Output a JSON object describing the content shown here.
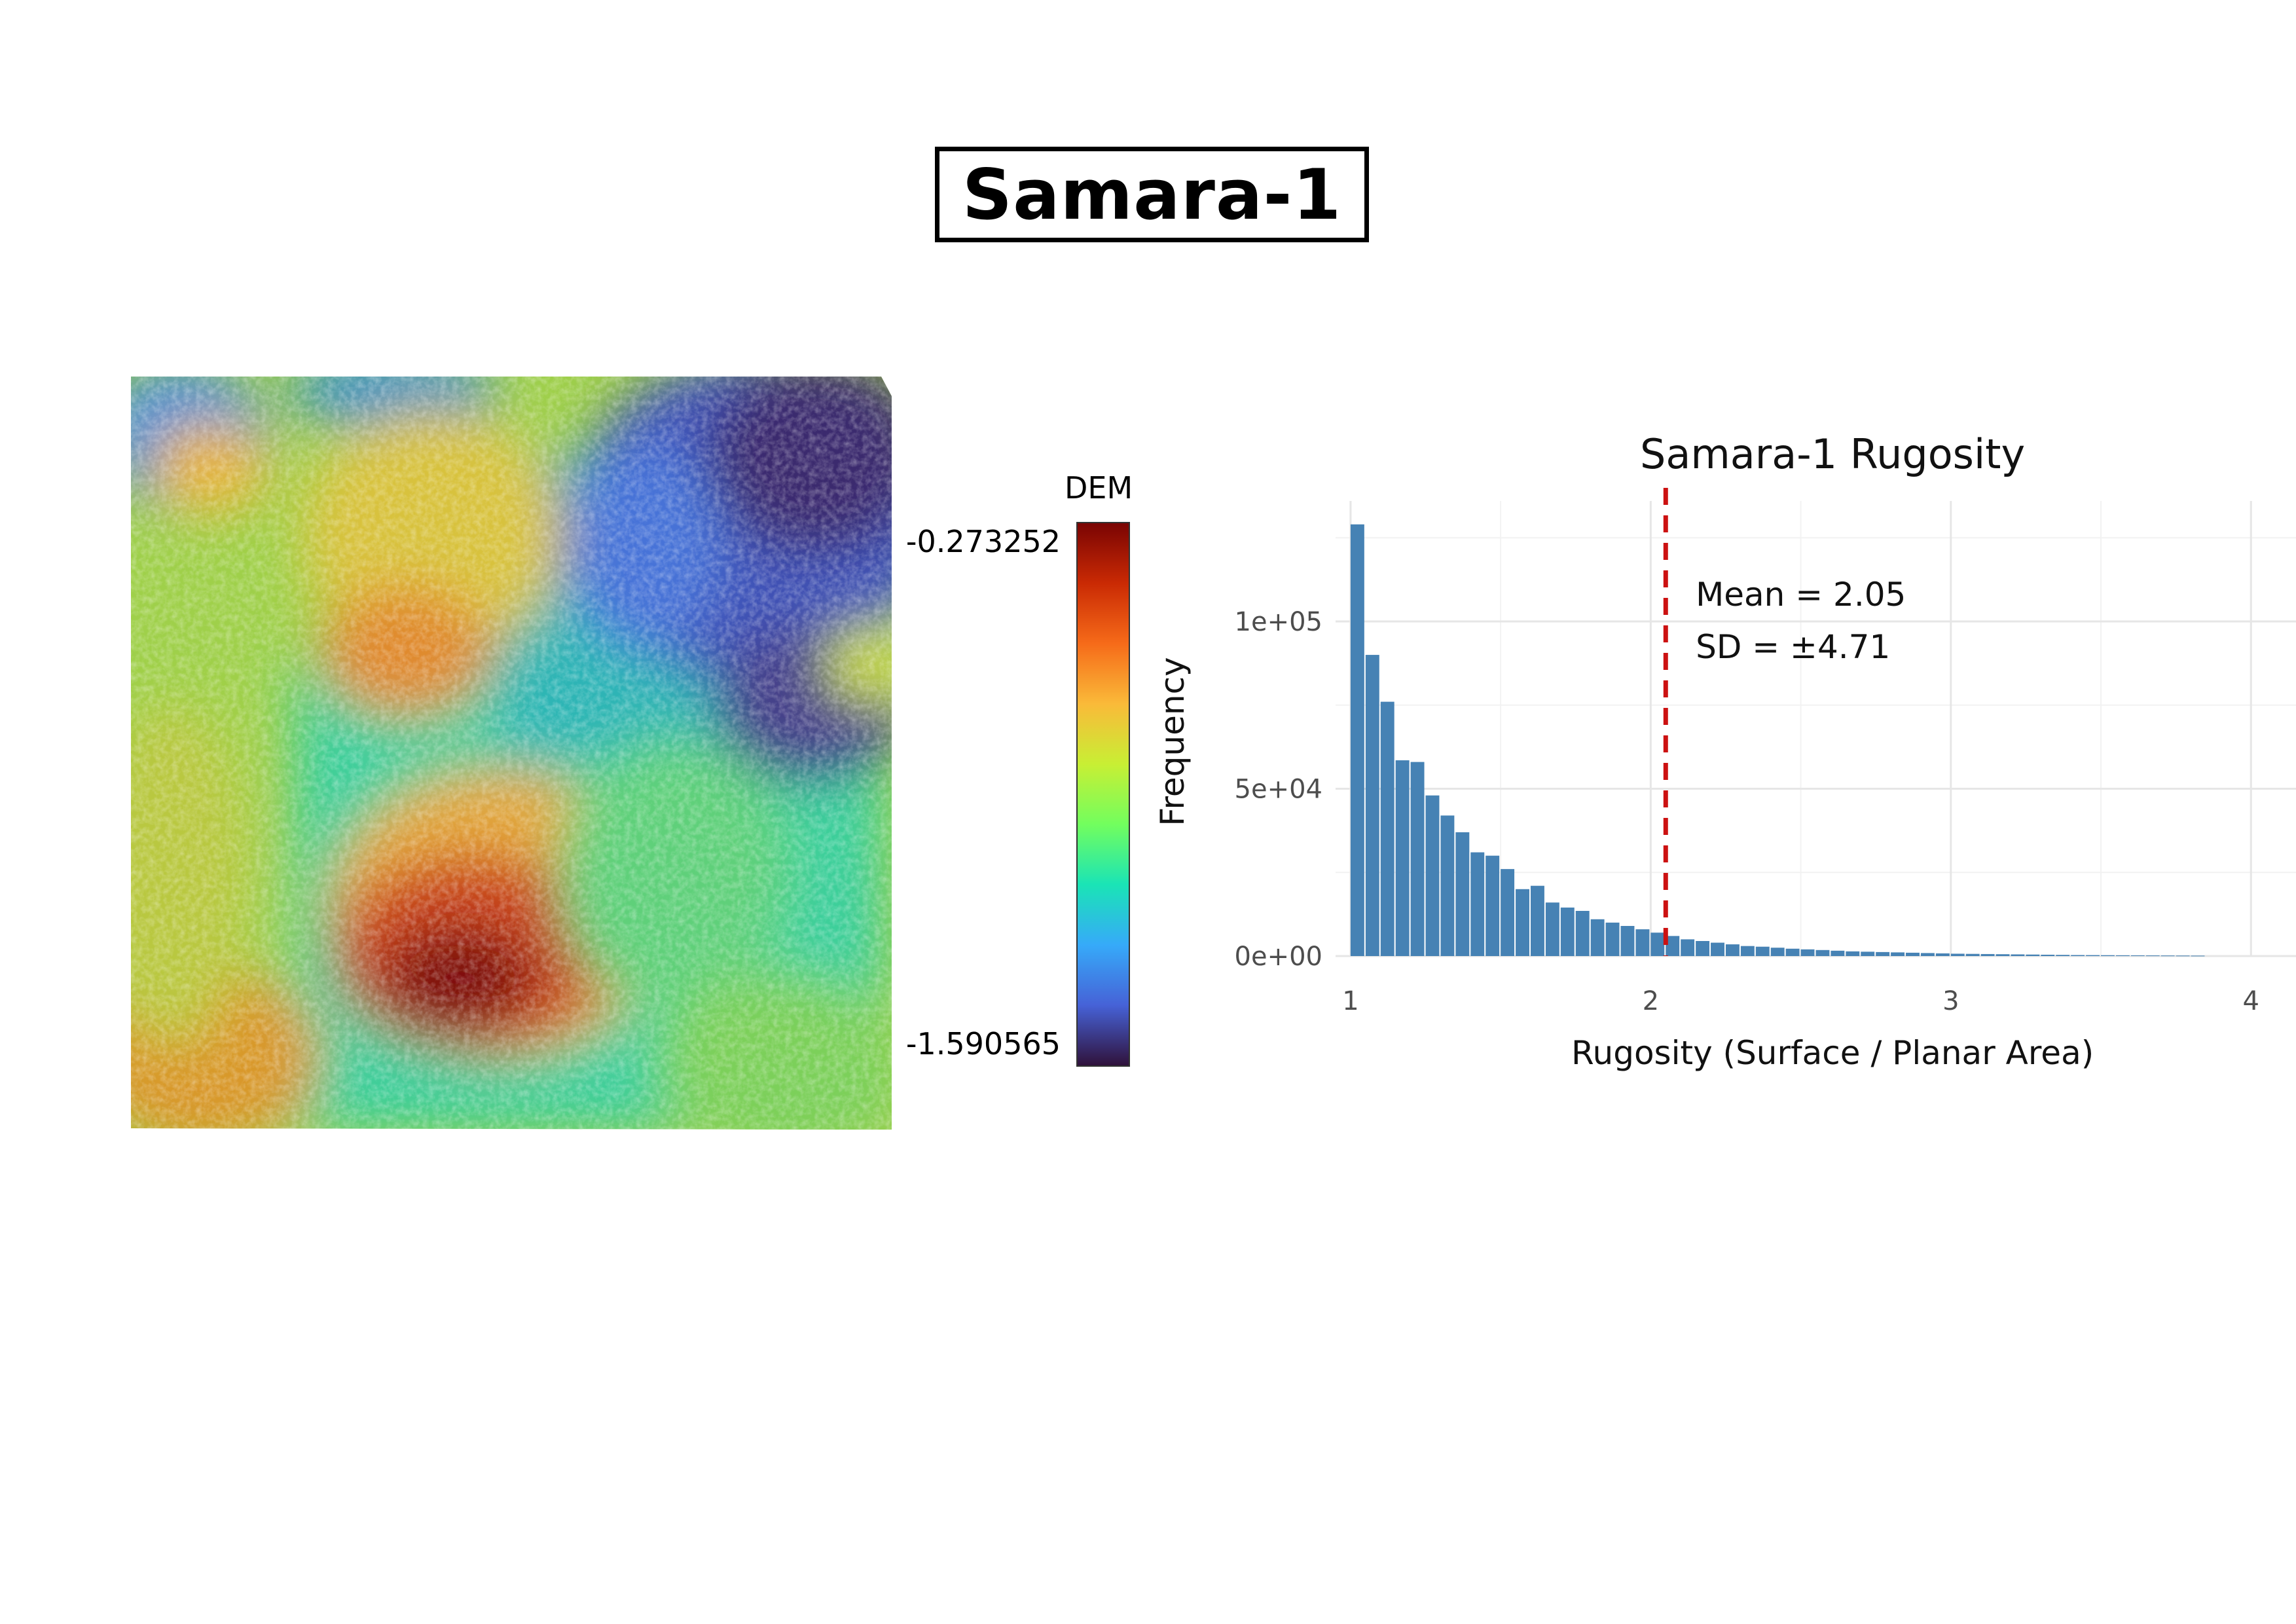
{
  "page": {
    "title": "Samara-1"
  },
  "dem_panel": {
    "legend_title": "DEM",
    "legend_max": "-0.273252",
    "legend_min": "-1.590565",
    "colormap": [
      "#30123b",
      "#4662d7",
      "#36aaf9",
      "#1ae4b6",
      "#72fe5e",
      "#c8ef34",
      "#faba39",
      "#f66b19",
      "#ca2a04",
      "#7a0403"
    ]
  },
  "chart_data": {
    "type": "bar",
    "title": "Samara-1 Rugosity",
    "xlabel": "Rugosity (Surface / Planar Area)",
    "ylabel": "Frequency",
    "xlim": [
      0.95,
      4.15
    ],
    "ylim": [
      0,
      136000
    ],
    "x_ticks": [
      1,
      2,
      3,
      4
    ],
    "x_tick_labels": [
      "1",
      "2",
      "3",
      "4"
    ],
    "y_ticks": [
      0,
      50000,
      100000
    ],
    "y_tick_labels": [
      "0e+00",
      "5e+04",
      "1e+05"
    ],
    "bin_width": 0.05,
    "bin_starts": [
      1.0,
      1.05,
      1.1,
      1.15,
      1.2,
      1.25,
      1.3,
      1.35,
      1.4,
      1.45,
      1.5,
      1.55,
      1.6,
      1.65,
      1.7,
      1.75,
      1.8,
      1.85,
      1.9,
      1.95,
      2.0,
      2.05,
      2.1,
      2.15,
      2.2,
      2.25,
      2.3,
      2.35,
      2.4,
      2.45,
      2.5,
      2.55,
      2.6,
      2.65,
      2.7,
      2.75,
      2.8,
      2.85,
      2.9,
      2.95,
      3.0,
      3.05,
      3.1,
      3.15,
      3.2,
      3.25,
      3.3,
      3.35,
      3.4,
      3.45,
      3.5,
      3.55,
      3.6,
      3.65,
      3.7,
      3.75,
      3.8
    ],
    "counts": [
      129000,
      90000,
      76000,
      58500,
      58000,
      48000,
      42000,
      37000,
      31000,
      30000,
      26000,
      20000,
      21000,
      16000,
      14500,
      13500,
      11000,
      10000,
      9000,
      8000,
      7000,
      6000,
      5000,
      4500,
      4000,
      3500,
      3000,
      2800,
      2500,
      2200,
      2000,
      1800,
      1600,
      1400,
      1300,
      1200,
      1100,
      1000,
      900,
      800,
      700,
      650,
      600,
      550,
      500,
      450,
      400,
      350,
      300,
      280,
      250,
      220,
      200,
      180,
      160,
      140,
      120
    ],
    "bar_color": "#4682b4",
    "mean_line": 2.05,
    "mean_line_color": "#cc1111",
    "annotations": [
      "Mean = 2.05",
      "SD = ±4.71"
    ],
    "grid": true
  }
}
